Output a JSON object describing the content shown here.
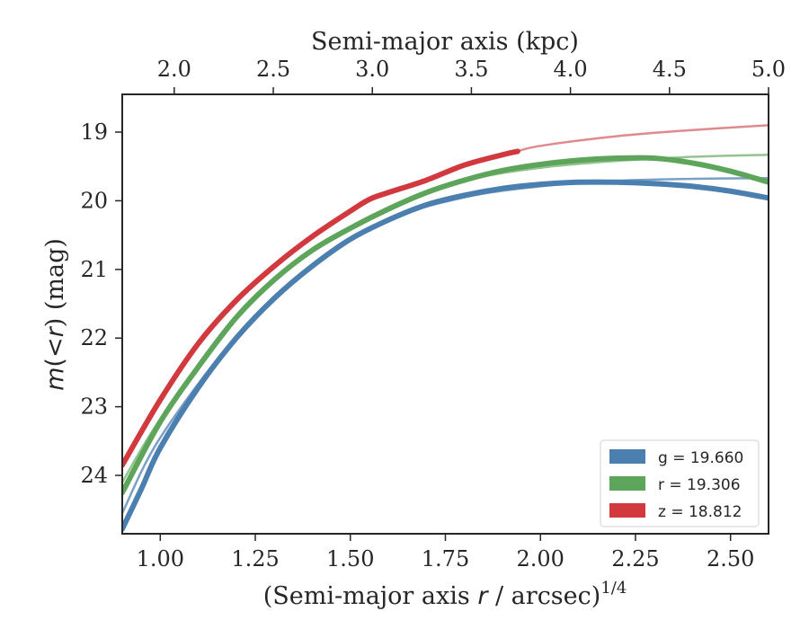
{
  "chart_data": {
    "type": "line",
    "x_top": {
      "label": "Semi-major axis (kpc)",
      "ticks": [
        "2.0",
        "2.5",
        "3.0",
        "3.5",
        "4.0",
        "4.5",
        "5.0"
      ]
    },
    "x_bottom": {
      "label_prefix": "(Semi-major axis ",
      "label_var": "r",
      "label_suffix": " / arcsec)",
      "label_sup": "1/4",
      "ticks": [
        "1.00",
        "1.25",
        "1.50",
        "1.75",
        "2.00",
        "2.25",
        "2.50"
      ]
    },
    "y": {
      "label_m": "m",
      "label_mid": "(<",
      "label_r": "r",
      "label_end": ") (mag)",
      "ticks": [
        "19",
        "20",
        "21",
        "22",
        "23",
        "24"
      ]
    },
    "xlim": [
      0.9,
      2.6
    ],
    "ylim": [
      24.85,
      18.45
    ],
    "inverted_y": true,
    "legend_position": "lower-right",
    "series": [
      {
        "name": "g = 19.660",
        "band": "g",
        "value": "19.660",
        "color": "#4a7fb0",
        "fit_color": "#7aa1c5",
        "data": [
          [
            0.9,
            24.78
          ],
          [
            0.95,
            24.2
          ],
          [
            1.0,
            23.6
          ],
          [
            1.1,
            22.72
          ],
          [
            1.2,
            22.0
          ],
          [
            1.3,
            21.42
          ],
          [
            1.4,
            20.95
          ],
          [
            1.5,
            20.56
          ],
          [
            1.6,
            20.28
          ],
          [
            1.7,
            20.06
          ],
          [
            1.8,
            19.92
          ],
          [
            1.9,
            19.82
          ],
          [
            2.0,
            19.76
          ],
          [
            2.1,
            19.73
          ],
          [
            2.2,
            19.73
          ],
          [
            2.3,
            19.75
          ],
          [
            2.4,
            19.79
          ],
          [
            2.5,
            19.86
          ],
          [
            2.6,
            19.96
          ]
        ],
        "fit": [
          [
            0.9,
            24.55
          ],
          [
            1.0,
            23.45
          ],
          [
            1.2,
            21.98
          ],
          [
            1.4,
            20.94
          ],
          [
            1.6,
            20.28
          ],
          [
            1.8,
            19.95
          ],
          [
            2.0,
            19.79
          ],
          [
            2.2,
            19.71
          ],
          [
            2.4,
            19.68
          ],
          [
            2.6,
            19.67
          ]
        ]
      },
      {
        "name": "r = 19.306",
        "band": "r",
        "value": "19.306",
        "color": "#5da55a",
        "fit_color": "#93c490",
        "data": [
          [
            0.9,
            24.25
          ],
          [
            1.0,
            23.22
          ],
          [
            1.1,
            22.42
          ],
          [
            1.2,
            21.7
          ],
          [
            1.3,
            21.15
          ],
          [
            1.4,
            20.72
          ],
          [
            1.5,
            20.4
          ],
          [
            1.6,
            20.12
          ],
          [
            1.7,
            19.88
          ],
          [
            1.8,
            19.7
          ],
          [
            1.9,
            19.56
          ],
          [
            2.0,
            19.47
          ],
          [
            2.1,
            19.41
          ],
          [
            2.2,
            19.38
          ],
          [
            2.3,
            19.38
          ],
          [
            2.4,
            19.45
          ],
          [
            2.5,
            19.57
          ],
          [
            2.6,
            19.73
          ]
        ],
        "fit": [
          [
            0.9,
            24.1
          ],
          [
            1.0,
            23.18
          ],
          [
            1.2,
            21.68
          ],
          [
            1.4,
            20.72
          ],
          [
            1.6,
            20.1
          ],
          [
            1.8,
            19.71
          ],
          [
            2.0,
            19.52
          ],
          [
            2.2,
            19.42
          ],
          [
            2.4,
            19.36
          ],
          [
            2.6,
            19.33
          ]
        ]
      },
      {
        "name": "z = 18.812",
        "band": "z",
        "value": "18.812",
        "color": "#d1393f",
        "fit_color": "#e08a8d",
        "data": [
          [
            0.9,
            23.85
          ],
          [
            1.0,
            22.9
          ],
          [
            1.1,
            22.08
          ],
          [
            1.2,
            21.45
          ],
          [
            1.3,
            20.95
          ],
          [
            1.4,
            20.52
          ],
          [
            1.5,
            20.15
          ],
          [
            1.55,
            19.98
          ],
          [
            1.6,
            19.88
          ],
          [
            1.7,
            19.7
          ],
          [
            1.8,
            19.48
          ],
          [
            1.9,
            19.33
          ],
          [
            1.94,
            19.28
          ]
        ],
        "fit": [
          [
            1.94,
            19.28
          ],
          [
            2.0,
            19.2
          ],
          [
            2.2,
            19.06
          ],
          [
            2.4,
            18.97
          ],
          [
            2.6,
            18.9
          ]
        ]
      }
    ]
  }
}
